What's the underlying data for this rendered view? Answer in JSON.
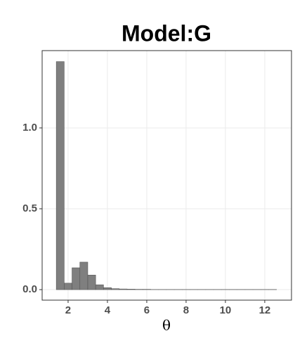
{
  "chart_data": {
    "type": "histogram",
    "title": "Model:G",
    "xlabel": "θ",
    "bins": [
      1.4,
      1.8,
      2.2,
      2.6,
      3.0,
      3.4,
      3.8,
      4.2,
      4.6,
      5.0,
      5.4,
      5.8,
      6.2,
      6.6,
      7.0,
      7.4,
      7.8,
      8.2,
      8.6,
      9.0,
      9.4,
      9.8,
      10.2,
      10.6,
      11.0,
      11.4,
      11.8,
      12.2,
      12.6
    ],
    "values": [
      1.41,
      0.04,
      0.135,
      0.17,
      0.09,
      0.03,
      0.012,
      0.006,
      0.004,
      0.003,
      0.002,
      0.002,
      0.001,
      0.001,
      0.001,
      0.001,
      0.001,
      0.001,
      0.001,
      0.001,
      0.001,
      0.001,
      0.001,
      0.001,
      0.001,
      0.001,
      0.001,
      0.001
    ],
    "color": "#7f7f7f",
    "xlim": [
      0.68,
      13.36
    ],
    "xticks": [
      2,
      4,
      6,
      8,
      10,
      12
    ],
    "ylim": [
      -0.065,
      1.478
    ],
    "yticks": [
      {
        "value": 0,
        "label": "0.0"
      },
      {
        "value": 0.5,
        "label": "0.5"
      },
      {
        "value": 1,
        "label": "1.0"
      }
    ],
    "grid": true
  }
}
